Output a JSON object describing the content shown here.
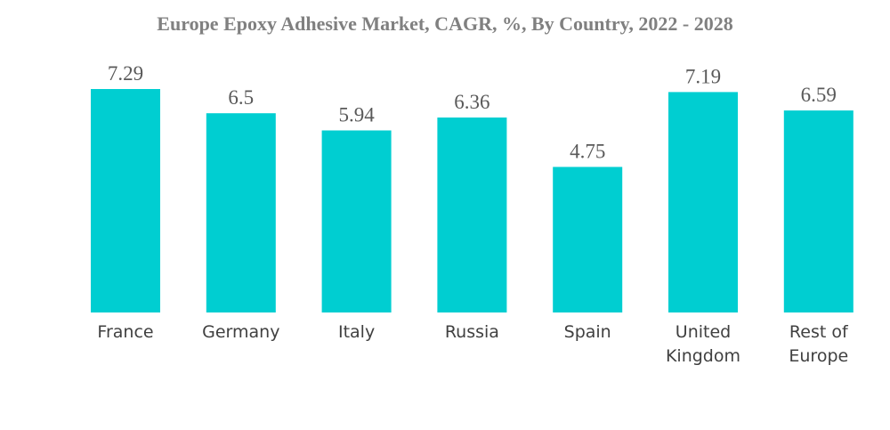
{
  "chart_data": {
    "type": "bar",
    "title": "Europe Epoxy Adhesive Market, CAGR, %, By Country, 2022 - 2028",
    "categories": [
      "France",
      "Germany",
      "Italy",
      "Russia",
      "Spain",
      "United Kingdom",
      "Rest of Europe"
    ],
    "category_label_lines": [
      [
        "France"
      ],
      [
        "Germany"
      ],
      [
        "Italy"
      ],
      [
        "Russia"
      ],
      [
        "Spain"
      ],
      [
        "United",
        "Kingdom"
      ],
      [
        "Rest of",
        "Europe"
      ]
    ],
    "values": [
      7.29,
      6.5,
      5.94,
      6.36,
      4.75,
      7.19,
      6.59
    ],
    "value_labels": [
      "7.29",
      "6.5",
      "5.94",
      "6.36",
      "4.75",
      "7.19",
      "6.59"
    ],
    "ylim": [
      0,
      7.29
    ],
    "grid": false,
    "legend": "none",
    "bar_color": "#00CED1"
  }
}
